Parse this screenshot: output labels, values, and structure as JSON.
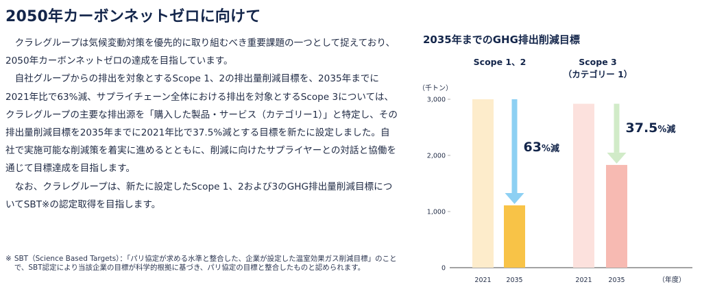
{
  "heading": "2050年カーボンネットゼロに向けて",
  "paragraphs": [
    "クラレグループは気候変動対策を優先的に取り組むべき重要課題の一つとして捉えており、2050年カーボンネットゼロの達成を目指しています。",
    "自社グループからの排出を対象とするScope 1、2の排出量削減目標を、2035年までに2021年比で63%減、サプライチェーン全体における排出を対象とするScope 3については、クラレグループの主要な排出源を「購入した製品・サービス（カテゴリー1）」と特定し、その排出量削減目標を2035年までに2021年比で37.5%減とする目標を新たに設定しました。自社で実施可能な削減策を着実に進めるとともに、削減に向けたサプライヤーとの対話と協働を通じて目標達成を目指します。",
    "なお、クラレグループは、新たに設定したScope 1、2および3のGHG排出量削減目標についてSBT※の認定取得を目指します。"
  ],
  "footnote": {
    "mark": "※",
    "text": "SBT（Science Based Targets）：「パリ協定が求める水準と整合した、企業が設定した温室効果ガス削減目標」のことで、SBT認定により当該企業の目標が科学的根拠に基づき、パリ協定の目標と整合したものと認められます。"
  },
  "chart_data": {
    "type": "bar",
    "title": "2035年までのGHG排出削減目標",
    "unit_label": "（千トン）",
    "xunit_label": "（年度）",
    "ylim": [
      0,
      3000
    ],
    "yticks": [
      0,
      1000,
      2000,
      3000
    ],
    "ytick_labels": [
      "0",
      "1,000",
      "2,000",
      "3,000"
    ],
    "grid": false,
    "groups": [
      {
        "name": "Scope 1、2",
        "categories": [
          "2021",
          "2035"
        ],
        "values": [
          3000,
          1110
        ],
        "colors": [
          "#fdeccb",
          "#f8c347"
        ],
        "arrow_color": "#8dd0f3",
        "reduction_value": "63",
        "reduction_suffix": "%減"
      },
      {
        "name": "Scope 3\n（カテゴリー 1）",
        "categories": [
          "2021",
          "2035"
        ],
        "values": [
          2920,
          1830
        ],
        "colors": [
          "#fce1dd",
          "#f7bab2"
        ],
        "arrow_color": "#d1ebc8",
        "reduction_value": "37.5",
        "reduction_suffix": "%減"
      }
    ]
  }
}
